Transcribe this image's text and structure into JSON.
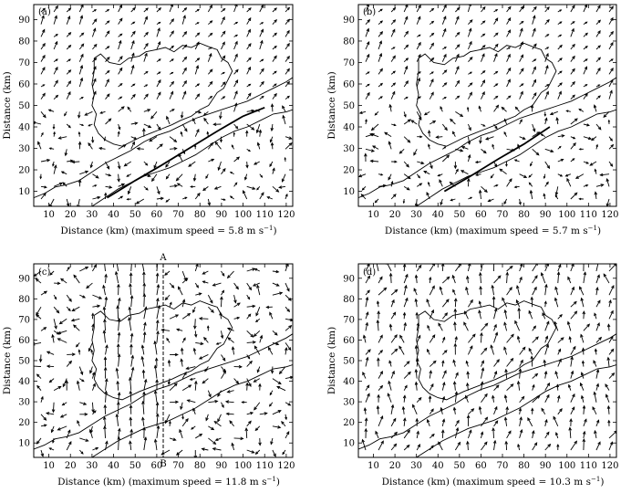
{
  "figure": {
    "background": "#ffffff",
    "ink": "#000000"
  },
  "chart_data": [
    {
      "type": "vector_field",
      "panel_label": "(a)",
      "xlabel": "Distance (km) (maximum speed = 5.8 m s",
      "xlabel_unit_exp": "−1",
      "xlabel_close": ")",
      "ylabel": "Distance (km)",
      "xlim": [
        3,
        123
      ],
      "ylim": [
        3,
        97
      ],
      "xticks": [
        10,
        20,
        30,
        40,
        50,
        60,
        70,
        80,
        90,
        100,
        110,
        120
      ],
      "yticks": [
        10,
        20,
        30,
        40,
        50,
        60,
        70,
        80,
        90
      ],
      "max_speed": 5.8
    },
    {
      "type": "vector_field",
      "panel_label": "(b)",
      "xlabel": "Distance (km) (maximum speed = 5.7 m s",
      "xlabel_unit_exp": "−1",
      "xlabel_close": ")",
      "ylabel": "Distance (km)",
      "xlim": [
        3,
        123
      ],
      "ylim": [
        3,
        97
      ],
      "xticks": [
        10,
        20,
        30,
        40,
        50,
        60,
        70,
        80,
        90,
        100,
        110,
        120
      ],
      "yticks": [
        10,
        20,
        30,
        40,
        50,
        60,
        70,
        80,
        90
      ],
      "max_speed": 5.7
    },
    {
      "type": "vector_field",
      "panel_label": "(c)",
      "xlabel": "Distance (km) (maximum speed = 11.8 m s",
      "xlabel_unit_exp": "−1",
      "xlabel_close": ")",
      "ylabel": "Distance (km)",
      "xlim": [
        3,
        123
      ],
      "ylim": [
        3,
        97
      ],
      "xticks": [
        10,
        20,
        30,
        40,
        50,
        60,
        70,
        80,
        90,
        100,
        110,
        120
      ],
      "yticks": [
        10,
        20,
        30,
        40,
        50,
        60,
        70,
        80,
        90
      ],
      "max_speed": 11.8,
      "section_line": {
        "x": 63,
        "top_label": "A",
        "bottom_label": "B"
      }
    },
    {
      "type": "vector_field",
      "panel_label": "(d)",
      "xlabel": "Distance (km) (maximum speed = 10.3 m s",
      "xlabel_unit_exp": "−1",
      "xlabel_close": ")",
      "ylabel": "Distance (km)",
      "xlim": [
        3,
        123
      ],
      "ylim": [
        3,
        97
      ],
      "xticks": [
        10,
        20,
        30,
        40,
        50,
        60,
        70,
        80,
        90,
        100,
        110,
        120
      ],
      "yticks": [
        10,
        20,
        30,
        40,
        50,
        60,
        70,
        80,
        90
      ],
      "max_speed": 10.3
    }
  ]
}
